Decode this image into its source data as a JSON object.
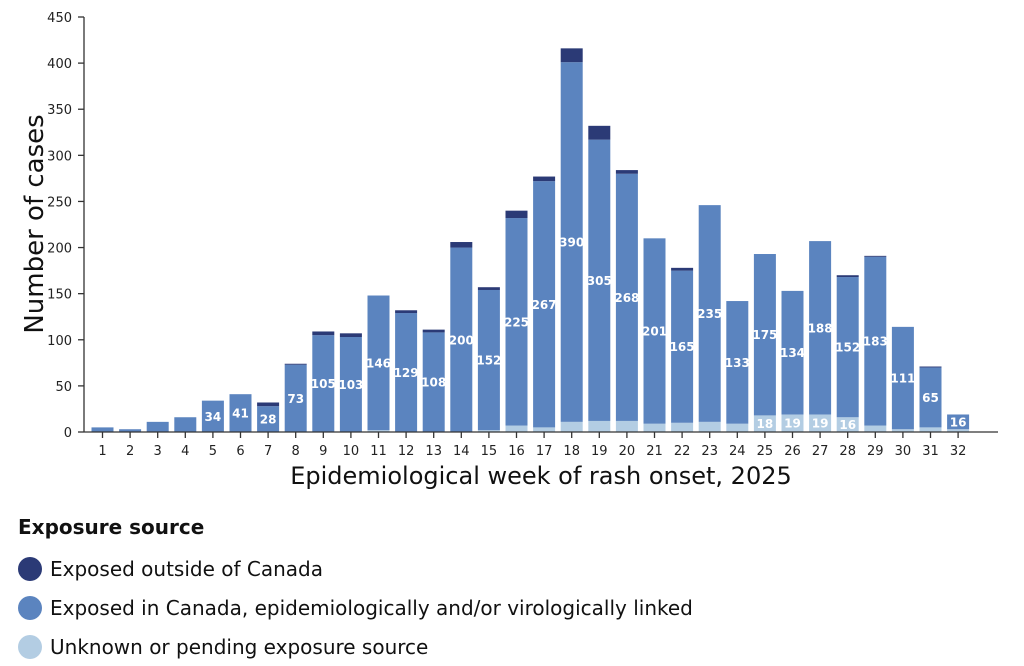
{
  "chart_data": {
    "type": "bar",
    "stacked": true,
    "xlabel": "Epidemiological week of rash onset, 2025",
    "ylabel": "Number of cases",
    "ylim": [
      0,
      450
    ],
    "yticks": [
      0,
      50,
      100,
      150,
      200,
      250,
      300,
      350,
      400,
      450
    ],
    "grid": false,
    "categories": [
      "1",
      "2",
      "3",
      "4",
      "5",
      "6",
      "7",
      "8",
      "9",
      "10",
      "11",
      "12",
      "13",
      "14",
      "15",
      "16",
      "17",
      "18",
      "19",
      "20",
      "21",
      "22",
      "23",
      "24",
      "25",
      "26",
      "27",
      "28",
      "29",
      "30",
      "31",
      "32"
    ],
    "series": [
      {
        "name": "Unknown or pending exposure source",
        "color": "#b3cde3",
        "values": [
          0,
          0,
          0,
          0,
          0,
          0,
          0,
          0,
          0,
          0,
          2,
          0,
          0,
          0,
          2,
          7,
          5,
          11,
          12,
          12,
          9,
          10,
          11,
          9,
          18,
          19,
          19,
          16,
          7,
          3,
          5,
          3
        ],
        "labels": [
          null,
          null,
          null,
          null,
          null,
          null,
          null,
          null,
          null,
          null,
          null,
          null,
          null,
          null,
          null,
          null,
          null,
          null,
          null,
          null,
          null,
          null,
          null,
          null,
          "18",
          "19",
          "19",
          "16",
          null,
          null,
          null,
          null
        ]
      },
      {
        "name": "Exposed in Canada, epidemiologically and/or virologically linked",
        "color": "#5b84bf",
        "values": [
          5,
          3,
          11,
          16,
          34,
          41,
          28,
          73,
          105,
          103,
          146,
          129,
          108,
          200,
          152,
          225,
          267,
          390,
          305,
          268,
          201,
          165,
          235,
          133,
          175,
          134,
          188,
          152,
          183,
          111,
          65,
          16
        ],
        "labels": [
          null,
          null,
          null,
          null,
          "34",
          "41",
          "28",
          "73",
          "105",
          "103",
          "146",
          "129",
          "108",
          "200",
          "152",
          "225",
          "267",
          "390",
          "305",
          "268",
          "201",
          "165",
          "235",
          "133",
          "175",
          "134",
          "188",
          "152",
          "183",
          "111",
          "65",
          "16"
        ]
      },
      {
        "name": "Exposed outside of Canada",
        "color": "#2b3a76",
        "values": [
          0,
          0,
          0,
          0,
          0,
          0,
          4,
          1,
          4,
          4,
          0,
          3,
          3,
          6,
          3,
          8,
          5,
          15,
          15,
          4,
          0,
          3,
          0,
          0,
          0,
          0,
          0,
          2,
          1,
          0,
          1,
          0
        ],
        "labels": []
      }
    ],
    "legend": {
      "title": "Exposure source",
      "position": "bottom-left",
      "order": [
        2,
        1,
        0
      ]
    }
  }
}
